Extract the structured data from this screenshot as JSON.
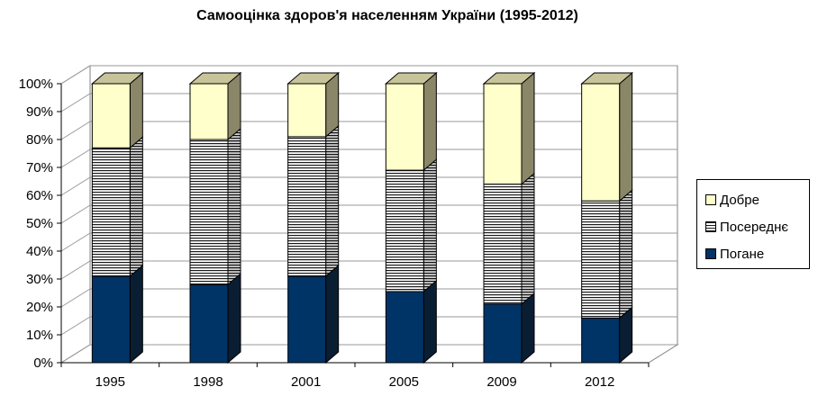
{
  "chart_data": {
    "type": "bar",
    "stacked": true,
    "percent_stacked": true,
    "three_d": true,
    "title": "Самооцінка здоров'я населенням України (1995-2012)",
    "categories": [
      "1995",
      "1998",
      "2001",
      "2005",
      "2009",
      "2012"
    ],
    "series": [
      {
        "name": "Погане",
        "values": [
          31,
          28,
          31,
          25.5,
          21,
          16
        ],
        "color": "#003366",
        "pattern": "solid"
      },
      {
        "name": "Посереднє",
        "values": [
          46,
          52,
          50,
          43.5,
          43,
          42
        ],
        "color": "#ffffff",
        "pattern": "horizontal-lines"
      },
      {
        "name": "Добре",
        "values": [
          23,
          20,
          19,
          31,
          36,
          42
        ],
        "color": "#ffffcc",
        "pattern": "solid"
      }
    ],
    "y_tick_labels": [
      "0%",
      "10%",
      "20%",
      "30%",
      "40%",
      "50%",
      "60%",
      "70%",
      "80%",
      "90%",
      "100%"
    ],
    "ylim": [
      0,
      100
    ],
    "grid": true,
    "legend_position": "right"
  },
  "legend_order": [
    2,
    1,
    0
  ]
}
